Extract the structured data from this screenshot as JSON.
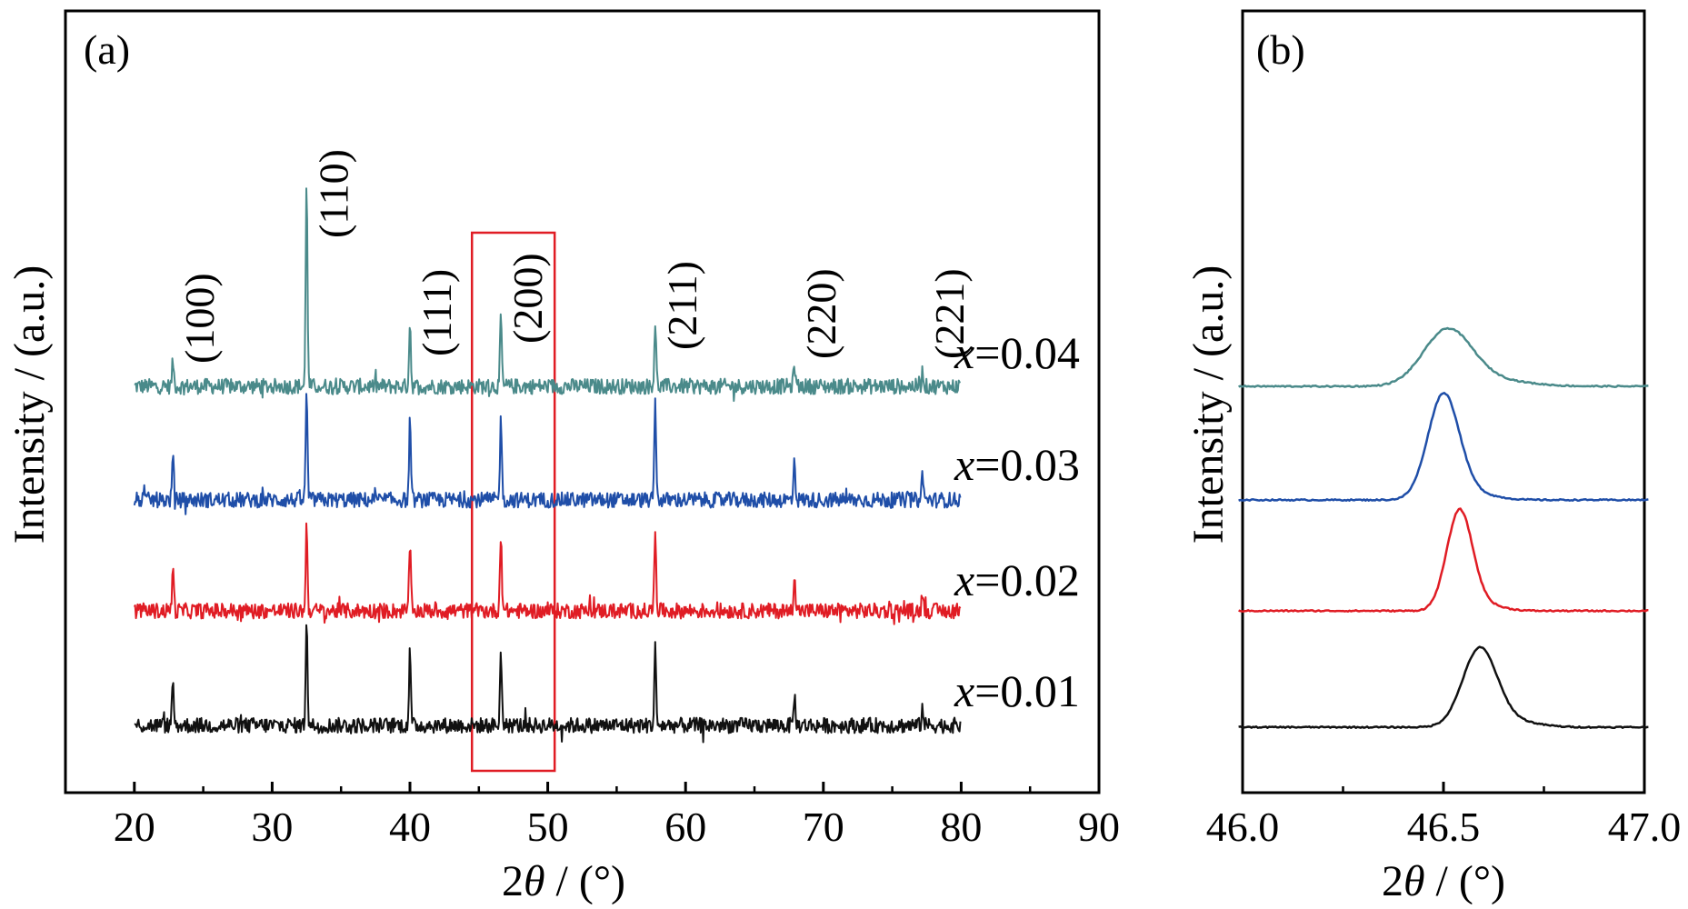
{
  "chart_data": [
    {
      "panel": "(a)",
      "type": "line",
      "xlabel_prefix": "2",
      "xlabel_symbol": "θ",
      "xlabel_suffix": " / (°)",
      "ylabel": "Intensity / (a.u.)",
      "xlim": [
        15,
        90
      ],
      "x_ticks": [
        "20",
        "30",
        "40",
        "50",
        "60",
        "70",
        "80",
        "90"
      ],
      "x_tick_values": [
        20,
        30,
        40,
        50,
        60,
        70,
        80,
        90
      ],
      "y_ticks": [],
      "grid": false,
      "x_range_measured": [
        20,
        80
      ],
      "highlight_box_x": [
        44.5,
        50.5
      ],
      "highlight_box_color": "#e01c24",
      "peak_labels": [
        {
          "text": "(100)",
          "x": 22.8
        },
        {
          "text": "(110)",
          "x": 32.5
        },
        {
          "text": "(111)",
          "x": 40.0
        },
        {
          "text": "(200)",
          "x": 46.6
        },
        {
          "text": "(211)",
          "x": 57.8
        },
        {
          "text": "(220)",
          "x": 67.9
        },
        {
          "text": "(221)",
          "x": 77.2
        }
      ],
      "series": [
        {
          "label_var": "x",
          "label_val": "=0.04",
          "color": "#4a8a8a",
          "peaks": [
            {
              "x": 22.8,
              "h": 0.8
            },
            {
              "x": 32.5,
              "h": 6.8
            },
            {
              "x": 40.0,
              "h": 2.1
            },
            {
              "x": 46.6,
              "h": 2.2
            },
            {
              "x": 57.8,
              "h": 2.1
            },
            {
              "x": 67.9,
              "h": 0.7
            },
            {
              "x": 77.2,
              "h": 0.5
            }
          ]
        },
        {
          "label_var": "x",
          "label_val": "=0.03",
          "color": "#1f4ea8",
          "peaks": [
            {
              "x": 22.8,
              "h": 1.4
            },
            {
              "x": 32.5,
              "h": 3.6
            },
            {
              "x": 40.0,
              "h": 2.6
            },
            {
              "x": 46.6,
              "h": 2.7
            },
            {
              "x": 57.8,
              "h": 3.2
            },
            {
              "x": 67.9,
              "h": 1.4
            },
            {
              "x": 77.2,
              "h": 0.9
            }
          ]
        },
        {
          "label_var": "x",
          "label_val": "=0.02",
          "color": "#e01c24",
          "peaks": [
            {
              "x": 22.8,
              "h": 1.4
            },
            {
              "x": 32.5,
              "h": 2.8
            },
            {
              "x": 40.0,
              "h": 2.2
            },
            {
              "x": 46.6,
              "h": 2.6
            },
            {
              "x": 57.8,
              "h": 2.8
            },
            {
              "x": 67.9,
              "h": 1.3
            },
            {
              "x": 77.2,
              "h": 0.7
            }
          ]
        },
        {
          "label_var": "x",
          "label_val": "=0.01",
          "color": "#111111",
          "peaks": [
            {
              "x": 22.8,
              "h": 1.3
            },
            {
              "x": 32.5,
              "h": 3.6
            },
            {
              "x": 40.0,
              "h": 2.4
            },
            {
              "x": 46.6,
              "h": 2.4
            },
            {
              "x": 57.8,
              "h": 2.5
            },
            {
              "x": 67.9,
              "h": 1.0
            },
            {
              "x": 77.2,
              "h": 0.6
            }
          ]
        }
      ]
    },
    {
      "panel": "(b)",
      "type": "line",
      "xlabel_prefix": "2",
      "xlabel_symbol": "θ",
      "xlabel_suffix": " / (°)",
      "ylabel": "Intensity / (a.u.)",
      "xlim": [
        46.0,
        47.0
      ],
      "x_ticks": [
        "46.0",
        "46.5",
        "47.0"
      ],
      "x_tick_values": [
        46.0,
        46.5,
        47.0
      ],
      "y_ticks": [],
      "grid": false,
      "series": [
        {
          "color": "#4a8a8a",
          "peak_x": 46.51,
          "peak_h": 1.0,
          "width": 0.085
        },
        {
          "color": "#1f4ea8",
          "peak_x": 46.5,
          "peak_h": 1.9,
          "width": 0.055
        },
        {
          "color": "#e01c24",
          "peak_x": 46.54,
          "peak_h": 1.8,
          "width": 0.045
        },
        {
          "color": "#111111",
          "peak_x": 46.59,
          "peak_h": 1.4,
          "width": 0.06
        }
      ]
    }
  ]
}
